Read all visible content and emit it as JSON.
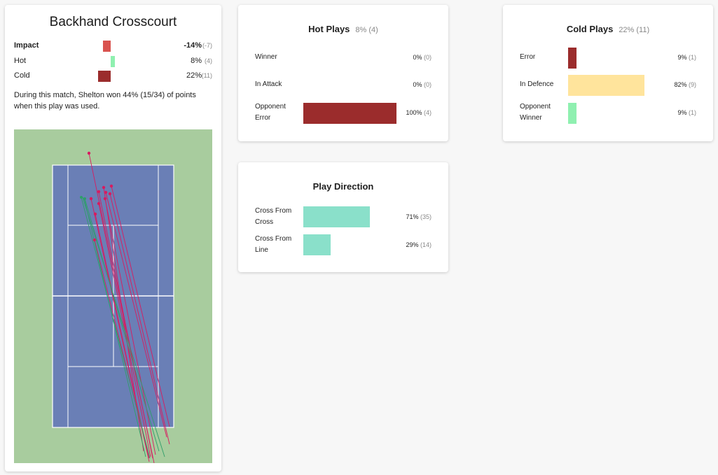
{
  "main": {
    "title": "Backhand Crosscourt",
    "impact": {
      "label": "Impact",
      "value": "-14%",
      "count": "(-7)",
      "color": "#d9534f"
    },
    "hot": {
      "label": "Hot",
      "value": "8%",
      "count": "(4)",
      "color": "#8ff0b0"
    },
    "cold": {
      "label": "Cold",
      "value": "22%",
      "count": "(11)",
      "color": "#9b2c2c"
    },
    "description": "During this match, Shelton won 44% (15/34) of points when this play was used.",
    "colors": {
      "grass": "#a8cc9e",
      "court": "#6a7fb6",
      "lines": "#ffffff",
      "cold_shot": "#d81b60",
      "hot_shot": "#2e9e6a"
    }
  },
  "hot_plays": {
    "title": "Hot Plays",
    "pct": "8% (4)",
    "rows": [
      {
        "label": "Winner",
        "value": "0%",
        "count": "(0)",
        "fraction": 0,
        "color": "#9b2c2c"
      },
      {
        "label": "In Attack",
        "value": "0%",
        "count": "(0)",
        "fraction": 0,
        "color": "#9b2c2c"
      },
      {
        "label": "Opponent Error",
        "value": "100%",
        "count": "(4)",
        "fraction": 1.0,
        "color": "#9b2c2c"
      }
    ]
  },
  "cold_plays": {
    "title": "Cold Plays",
    "pct": "22% (11)",
    "rows": [
      {
        "label": "Error",
        "value": "9%",
        "count": "(1)",
        "fraction": 0.09,
        "color": "#9b2c2c"
      },
      {
        "label": "In Defence",
        "value": "82%",
        "count": "(9)",
        "fraction": 0.82,
        "color": "#ffe49c"
      },
      {
        "label": "Opponent Winner",
        "value": "9%",
        "count": "(1)",
        "fraction": 0.09,
        "color": "#8ff0b0"
      }
    ]
  },
  "play_direction": {
    "title": "Play Direction",
    "rows": [
      {
        "label": "Cross From Cross",
        "value": "71%",
        "count": "(35)",
        "fraction": 0.71,
        "color": "#8ae0ca"
      },
      {
        "label": "Cross From Line",
        "value": "29%",
        "count": "(14)",
        "fraction": 0.29,
        "color": "#8ae0ca"
      }
    ]
  }
}
